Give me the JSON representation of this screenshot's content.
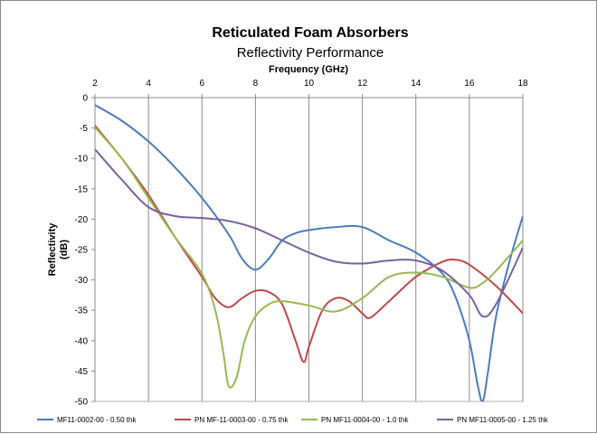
{
  "chart_data": {
    "type": "line",
    "title": "Reticulated Foam Absorbers",
    "subtitle": "Reflectivity Performance",
    "xlabel": "Frequency (GHz)",
    "ylabel_lines": [
      "Reflectivity",
      "(dB)"
    ],
    "xlim": [
      2,
      18
    ],
    "ylim": [
      -50,
      0
    ],
    "xticks": [
      2,
      4,
      6,
      8,
      10,
      12,
      14,
      16,
      18
    ],
    "yticks": [
      0,
      -5,
      -10,
      -15,
      -20,
      -25,
      -30,
      -35,
      -40,
      -45,
      -50
    ],
    "x_axis_position": "top",
    "grid": "vertical",
    "legend_position": "bottom",
    "series": [
      {
        "name": "MF11-0002-00 - 0.50 thk",
        "color": "#4a7ebb",
        "points": [
          [
            2,
            -1.2
          ],
          [
            3,
            -3.8
          ],
          [
            4,
            -7.2
          ],
          [
            5,
            -11.5
          ],
          [
            6,
            -16.5
          ],
          [
            7,
            -22.5
          ],
          [
            7.5,
            -26.5
          ],
          [
            8,
            -28.3
          ],
          [
            8.5,
            -26.5
          ],
          [
            9,
            -23.5
          ],
          [
            9.5,
            -22.3
          ],
          [
            10,
            -21.8
          ],
          [
            11,
            -21.3
          ],
          [
            12,
            -21.3
          ],
          [
            13,
            -23.5
          ],
          [
            14,
            -25.5
          ],
          [
            15,
            -29
          ],
          [
            15.5,
            -33
          ],
          [
            16,
            -40
          ],
          [
            16.3,
            -47
          ],
          [
            16.5,
            -50
          ],
          [
            16.7,
            -45
          ],
          [
            17,
            -36
          ],
          [
            17.5,
            -27
          ],
          [
            18,
            -19.5
          ]
        ]
      },
      {
        "name": "PN MF-11-0003-00 - 0.75 thk",
        "color": "#be4b48",
        "points": [
          [
            2,
            -4.6
          ],
          [
            3,
            -10
          ],
          [
            4,
            -16
          ],
          [
            5,
            -23
          ],
          [
            6,
            -29.5
          ],
          [
            6.5,
            -33
          ],
          [
            7,
            -34.5
          ],
          [
            7.5,
            -33
          ],
          [
            8,
            -31.8
          ],
          [
            8.5,
            -32
          ],
          [
            9,
            -34
          ],
          [
            9.5,
            -40
          ],
          [
            9.8,
            -43.5
          ],
          [
            10,
            -41
          ],
          [
            10.5,
            -35
          ],
          [
            11,
            -33
          ],
          [
            11.5,
            -33.5
          ],
          [
            12,
            -35.5
          ],
          [
            12.3,
            -36.2
          ],
          [
            13,
            -33.5
          ],
          [
            14,
            -29.5
          ],
          [
            15,
            -27
          ],
          [
            15.5,
            -26.7
          ],
          [
            16,
            -27.5
          ],
          [
            17,
            -31
          ],
          [
            18,
            -35.5
          ]
        ]
      },
      {
        "name": "PN MF11-0004-00 - 1.0 thk",
        "color": "#98b954",
        "points": [
          [
            2,
            -4.9
          ],
          [
            3,
            -10
          ],
          [
            4,
            -16.5
          ],
          [
            5,
            -23
          ],
          [
            6,
            -29
          ],
          [
            6.5,
            -35
          ],
          [
            6.8,
            -42
          ],
          [
            7,
            -47.5
          ],
          [
            7.3,
            -46
          ],
          [
            7.6,
            -40
          ],
          [
            8,
            -36
          ],
          [
            8.5,
            -34
          ],
          [
            9,
            -33.5
          ],
          [
            10,
            -34.2
          ],
          [
            11,
            -35.2
          ],
          [
            12,
            -33
          ],
          [
            13,
            -29.5
          ],
          [
            14,
            -28.8
          ],
          [
            15,
            -29.5
          ],
          [
            16,
            -31.3
          ],
          [
            16.5,
            -30.5
          ],
          [
            17,
            -28.5
          ],
          [
            18,
            -23.5
          ]
        ]
      },
      {
        "name": "PN MF11-0005-00 - 1.25 thk",
        "color": "#7d60a0",
        "points": [
          [
            2,
            -8.5
          ],
          [
            3,
            -13.5
          ],
          [
            4,
            -18
          ],
          [
            5,
            -19.5
          ],
          [
            6,
            -19.8
          ],
          [
            7,
            -20.3
          ],
          [
            8,
            -21.5
          ],
          [
            9,
            -23.5
          ],
          [
            10,
            -25.5
          ],
          [
            11,
            -27
          ],
          [
            12,
            -27.3
          ],
          [
            13,
            -26.8
          ],
          [
            14,
            -26.8
          ],
          [
            15,
            -28.5
          ],
          [
            16,
            -32.5
          ],
          [
            16.5,
            -36
          ],
          [
            17,
            -34
          ],
          [
            18,
            -24.7
          ]
        ]
      }
    ]
  }
}
